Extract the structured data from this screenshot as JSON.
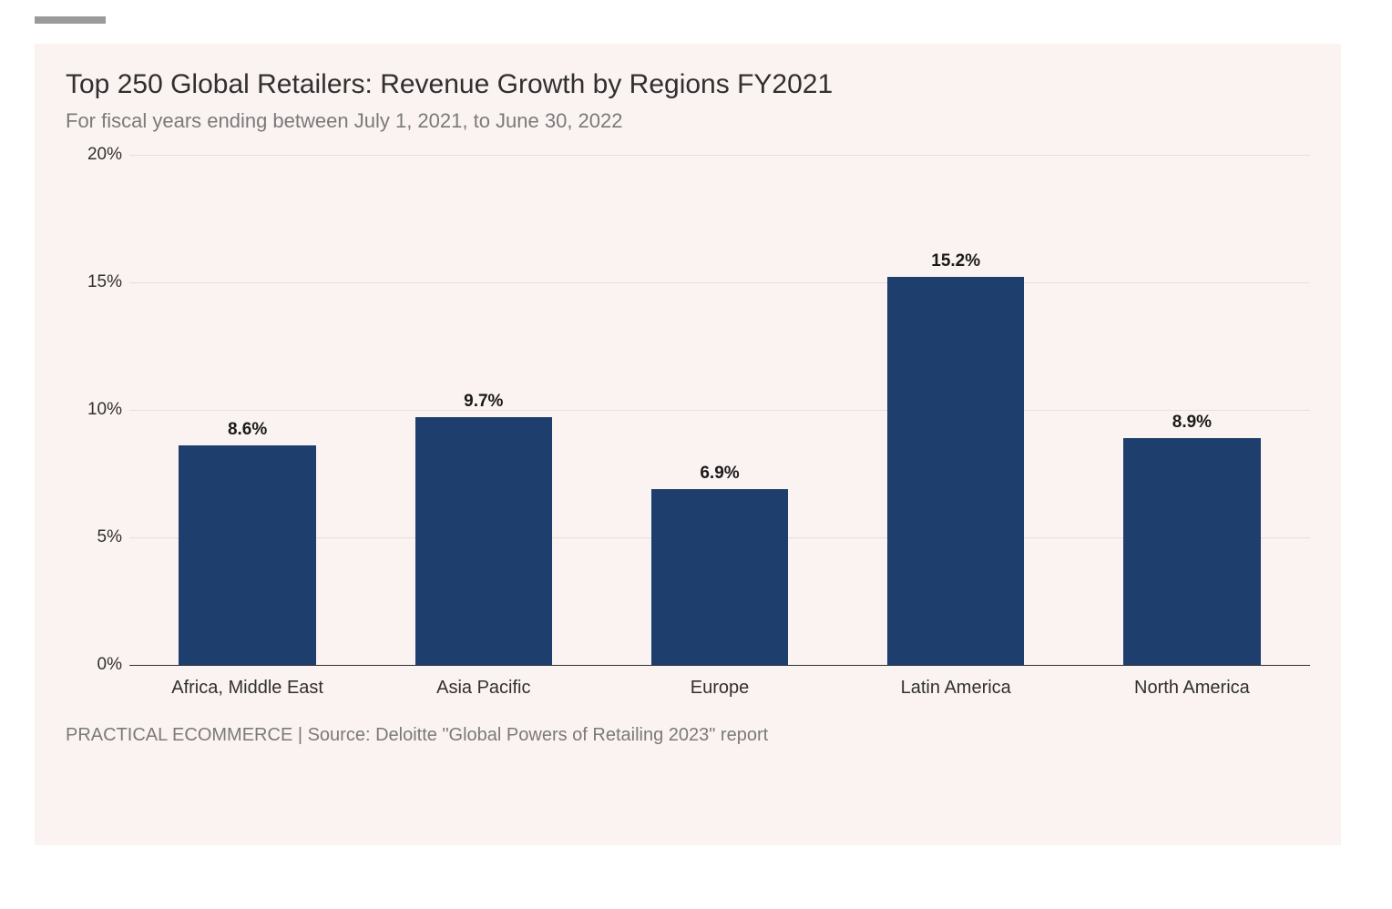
{
  "chart": {
    "type": "bar",
    "title": "Top 250 Global Retailers: Revenue Growth by Regions FY2021",
    "subtitle": "For fiscal years ending between July 1, 2021, to June 30, 2022",
    "source": "PRACTICAL ECOMMERCE | Source: Deloitte \"Global Powers of Retailing 2023\" report",
    "categories": [
      "Africa, Middle East",
      "Asia Pacific",
      "Europe",
      "Latin America",
      "North America"
    ],
    "values": [
      8.6,
      9.7,
      6.9,
      15.2,
      8.9
    ],
    "value_labels": [
      "8.6%",
      "9.7%",
      "6.9%",
      "15.2%",
      "8.9%"
    ],
    "bar_color": "#1e3e6e",
    "background_color": "#fbf3f1",
    "grid_color": "#e8dfdd",
    "axis_color": "#303030",
    "title_color": "#303030",
    "subtitle_color": "#7a7a7a",
    "title_fontsize": 30,
    "subtitle_fontsize": 22,
    "label_fontsize": 20,
    "value_fontsize": 19,
    "ylim": [
      0,
      20
    ],
    "ytick_step": 5,
    "yticks": [
      0,
      5,
      10,
      15,
      20
    ],
    "ytick_labels": [
      "0%",
      "5%",
      "10%",
      "15%",
      "20%"
    ],
    "bar_width_ratio": 0.58
  }
}
